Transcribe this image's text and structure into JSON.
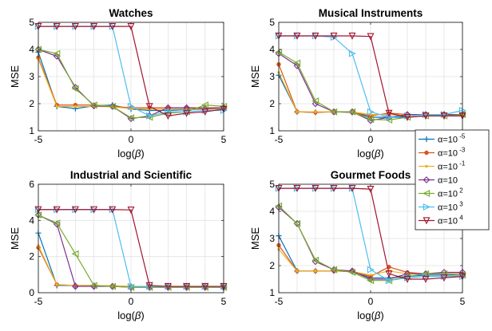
{
  "chart_data": {
    "type": "line",
    "x": [
      -5,
      -4,
      -3,
      -2,
      -1,
      0,
      1,
      2,
      3,
      4,
      5
    ],
    "legend": {
      "placement": "right",
      "entries": [
        {
          "base": "α=10",
          "exp": "-5",
          "color": "#0072BD",
          "marker": "plus"
        },
        {
          "base": "α=10",
          "exp": "-3",
          "color": "#D95319",
          "marker": "dot"
        },
        {
          "base": "α=10",
          "exp": "-1",
          "color": "#EDB120",
          "marker": "point"
        },
        {
          "base": "α=10",
          "exp": "",
          "color": "#7E2F8E",
          "marker": "diamond"
        },
        {
          "base": "α=10",
          "exp": "2",
          "color": "#77AC30",
          "marker": "triangle-left"
        },
        {
          "base": "α=10",
          "exp": "3",
          "color": "#4DBEEE",
          "marker": "triangle-right"
        },
        {
          "base": "α=10",
          "exp": "4",
          "color": "#A2142F",
          "marker": "triangle-down"
        }
      ]
    },
    "panels": [
      {
        "title": "Watches",
        "ylabel": "MSE",
        "xlabel": "log(",
        "xlabel_symbol": "β",
        "xlabel_close": ")",
        "xlim": [
          -5,
          5
        ],
        "ylim": [
          1,
          5
        ],
        "xticks": [
          "-5",
          "0",
          "5"
        ],
        "yticks": [
          "1",
          "2",
          "3",
          "4",
          "5"
        ],
        "grid": true,
        "series": [
          {
            "values": [
              3.9,
              1.9,
              1.82,
              1.92,
              1.95,
              1.8,
              1.75,
              1.75,
              1.78,
              1.8,
              1.8
            ]
          },
          {
            "values": [
              3.7,
              1.95,
              1.95,
              1.95,
              1.9,
              1.85,
              1.85,
              1.85,
              1.85,
              1.85,
              1.85
            ]
          },
          {
            "values": [
              3.65,
              1.9,
              1.9,
              1.9,
              1.88,
              1.82,
              1.8,
              1.8,
              1.8,
              1.8,
              1.8
            ]
          },
          {
            "values": [
              4.0,
              3.75,
              2.6,
              1.92,
              1.9,
              1.45,
              1.55,
              1.85,
              1.85,
              1.82,
              1.85
            ]
          },
          {
            "values": [
              4.0,
              3.85,
              2.55,
              1.95,
              1.9,
              1.48,
              1.5,
              1.65,
              1.7,
              1.95,
              1.9
            ]
          },
          {
            "values": [
              4.85,
              4.85,
              4.85,
              4.85,
              4.85,
              1.9,
              1.55,
              1.7,
              1.7,
              1.75,
              1.75
            ]
          },
          {
            "values": [
              4.85,
              4.85,
              4.85,
              4.85,
              4.85,
              4.85,
              1.9,
              1.55,
              1.65,
              1.7,
              1.8
            ]
          }
        ]
      },
      {
        "title": "Musical Instruments",
        "ylabel": "MSE",
        "xlabel": "log(",
        "xlabel_symbol": "β",
        "xlabel_close": ")",
        "xlim": [
          -5,
          5
        ],
        "ylim": [
          1,
          5
        ],
        "xticks": [
          "-5",
          "0",
          "5"
        ],
        "yticks": [
          "1",
          "2",
          "3",
          "4",
          "5"
        ],
        "grid": true,
        "series": [
          {
            "values": [
              3.05,
              1.7,
              1.68,
              1.7,
              1.68,
              1.5,
              1.5,
              1.5,
              1.55,
              1.55,
              1.55
            ]
          },
          {
            "values": [
              3.45,
              1.7,
              1.68,
              1.7,
              1.68,
              1.55,
              1.65,
              1.6,
              1.6,
              1.6,
              1.6
            ]
          },
          {
            "values": [
              3.15,
              1.7,
              1.7,
              1.7,
              1.7,
              1.6,
              1.6,
              1.6,
              1.6,
              1.6,
              1.6
            ]
          },
          {
            "values": [
              3.85,
              3.4,
              2.0,
              1.7,
              1.7,
              1.38,
              1.5,
              1.6,
              1.6,
              1.6,
              1.6
            ]
          },
          {
            "values": [
              3.9,
              3.5,
              2.1,
              1.7,
              1.7,
              1.42,
              1.4,
              1.5,
              1.55,
              1.55,
              1.6
            ]
          },
          {
            "values": [
              4.5,
              4.5,
              4.5,
              4.45,
              3.85,
              1.7,
              1.5,
              1.55,
              1.6,
              1.6,
              1.75
            ]
          },
          {
            "values": [
              4.5,
              4.5,
              4.5,
              4.5,
              4.5,
              4.48,
              1.65,
              1.5,
              1.55,
              1.55,
              1.55
            ]
          }
        ]
      },
      {
        "title": "Industrial and Scientific",
        "ylabel": "MSE",
        "xlabel": "log(",
        "xlabel_symbol": "β",
        "xlabel_close": ")",
        "xlim": [
          -5,
          5
        ],
        "ylim": [
          0,
          6
        ],
        "xticks": [
          "-5",
          "0",
          "5"
        ],
        "yticks": [
          "0",
          "2",
          "4",
          "6"
        ],
        "grid": true,
        "series": [
          {
            "values": [
              3.3,
              0.4,
              0.4,
              0.4,
              0.35,
              0.35,
              0.35,
              0.35,
              0.35,
              0.35,
              0.35
            ]
          },
          {
            "values": [
              2.5,
              0.45,
              0.4,
              0.4,
              0.38,
              0.35,
              0.35,
              0.35,
              0.35,
              0.35,
              0.35
            ]
          },
          {
            "values": [
              2.6,
              0.45,
              0.4,
              0.4,
              0.38,
              0.35,
              0.35,
              0.35,
              0.35,
              0.35,
              0.35
            ]
          },
          {
            "values": [
              4.3,
              3.8,
              0.35,
              0.35,
              0.35,
              0.3,
              0.3,
              0.3,
              0.3,
              0.3,
              0.3
            ]
          },
          {
            "values": [
              4.3,
              3.85,
              2.15,
              0.4,
              0.35,
              0.3,
              0.3,
              0.3,
              0.3,
              0.3,
              0.3
            ]
          },
          {
            "values": [
              4.6,
              4.6,
              4.6,
              4.6,
              4.6,
              0.35,
              0.35,
              0.35,
              0.35,
              0.35,
              0.35
            ]
          },
          {
            "values": [
              4.6,
              4.6,
              4.6,
              4.6,
              4.6,
              4.58,
              0.4,
              0.35,
              0.35,
              0.35,
              0.35
            ]
          }
        ]
      },
      {
        "title": "Gourmet Foods",
        "ylabel": "MSE",
        "xlabel": "log(",
        "xlabel_symbol": "β",
        "xlabel_close": ")",
        "xlim": [
          -5,
          5
        ],
        "ylim": [
          1,
          5
        ],
        "xticks": [
          "-5",
          "0",
          "5"
        ],
        "yticks": [
          "1",
          "2",
          "3",
          "4",
          "5"
        ],
        "grid": true,
        "series": [
          {
            "values": [
              3.1,
              1.8,
              1.8,
              1.8,
              1.78,
              1.55,
              1.55,
              1.6,
              1.65,
              1.65,
              1.65
            ]
          },
          {
            "values": [
              2.75,
              1.8,
              1.8,
              1.8,
              1.78,
              1.6,
              1.95,
              1.75,
              1.7,
              1.7,
              1.7
            ]
          },
          {
            "values": [
              2.6,
              1.8,
              1.8,
              1.8,
              1.78,
              1.65,
              1.8,
              1.7,
              1.7,
              1.7,
              1.7
            ]
          },
          {
            "values": [
              4.15,
              3.55,
              2.15,
              1.85,
              1.8,
              1.5,
              1.5,
              1.7,
              1.7,
              1.75,
              1.75
            ]
          },
          {
            "values": [
              4.2,
              3.55,
              2.2,
              1.85,
              1.75,
              1.45,
              1.45,
              1.6,
              1.7,
              1.7,
              1.65
            ]
          },
          {
            "values": [
              4.85,
              4.85,
              4.85,
              4.85,
              4.85,
              1.85,
              1.45,
              1.55,
              1.6,
              1.6,
              1.6
            ]
          },
          {
            "values": [
              4.85,
              4.85,
              4.85,
              4.85,
              4.85,
              4.82,
              1.7,
              1.5,
              1.5,
              1.55,
              1.6
            ]
          }
        ]
      }
    ]
  }
}
